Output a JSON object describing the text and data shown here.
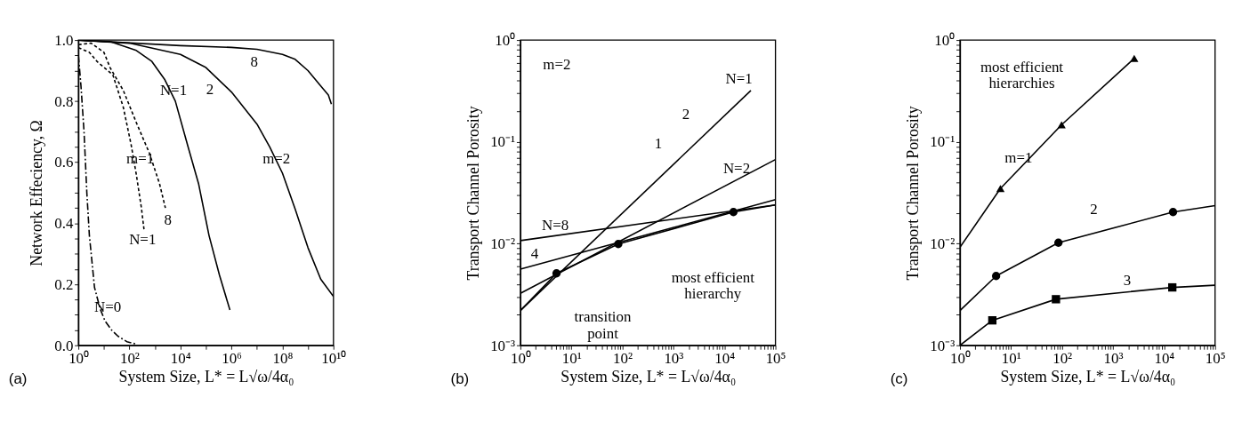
{
  "chart_data": [
    {
      "type": "line",
      "title": "(a)",
      "xlabel": "System Size, L* = L√ω/4α₀",
      "ylabel": "Network Effeciency, Ω",
      "log": "x",
      "xlim": [
        1,
        10000000000
      ],
      "ylim": [
        0,
        1
      ],
      "xticks": [
        {
          "value": 1,
          "label": "10⁰"
        },
        {
          "value": 10,
          "label": null
        },
        {
          "value": 100,
          "label": "10²"
        },
        {
          "value": 1000,
          "label": null
        },
        {
          "value": 10000,
          "label": "10⁴"
        },
        {
          "value": 100000,
          "label": null
        },
        {
          "value": 1000000,
          "label": "10⁶"
        },
        {
          "value": 10000000,
          "label": null
        },
        {
          "value": 100000000,
          "label": "10⁸"
        },
        {
          "value": 1000000000,
          "label": null
        },
        {
          "value": 10000000000,
          "label": "10¹⁰"
        }
      ],
      "yticks": [
        {
          "value": 0,
          "label": "0.0"
        },
        {
          "value": 0.05,
          "label": null
        },
        {
          "value": 0.1,
          "label": null
        },
        {
          "value": 0.15,
          "label": null
        },
        {
          "value": 0.2,
          "label": "0.2"
        },
        {
          "value": 0.25,
          "label": null
        },
        {
          "value": 0.3,
          "label": null
        },
        {
          "value": 0.35,
          "label": null
        },
        {
          "value": 0.4,
          "label": "0.4"
        },
        {
          "value": 0.45,
          "label": null
        },
        {
          "value": 0.5,
          "label": null
        },
        {
          "value": 0.55,
          "label": null
        },
        {
          "value": 0.6,
          "label": "0.6"
        },
        {
          "value": 0.65,
          "label": null
        },
        {
          "value": 0.7,
          "label": null
        },
        {
          "value": 0.75,
          "label": null
        },
        {
          "value": 0.8,
          "label": "0.8"
        },
        {
          "value": 0.85,
          "label": null
        },
        {
          "value": 0.9,
          "label": null
        },
        {
          "value": 0.95,
          "label": null
        },
        {
          "value": 1,
          "label": "1.0"
        }
      ],
      "series": [
        {
          "name": "N=0",
          "color": "#000000",
          "line_style": "dashed",
          "x": [
            1,
            1.26,
            1.66,
            2.14,
            2.69,
            4.27,
            7.08,
            11,
            20,
            35.5,
            79.4,
            186
          ],
          "values": [
            0.95,
            0.85,
            0.7,
            0.5,
            0.36,
            0.19,
            0.12,
            0.08,
            0.05,
            0.03,
            0.012,
            0.004
          ]
        },
        {
          "name": "N=1",
          "color": "#000000",
          "line_style": "dotted",
          "x": [
            1,
            2.69,
            5.37,
            22.4,
            57.5,
            115,
            186,
            295,
            372
          ],
          "values": [
            0.975,
            0.96,
            0.93,
            0.886,
            0.78,
            0.66,
            0.56,
            0.45,
            0.38
          ]
        },
        {
          "name": "8",
          "color": "#000000",
          "line_style": "dotted",
          "x": [
            1,
            3.16,
            10,
            17.4,
            57.5,
            186,
            603,
            1510,
            2570
          ],
          "values": [
            0.985,
            0.99,
            0.96,
            0.91,
            0.835,
            0.73,
            0.63,
            0.53,
            0.45
          ]
        },
        {
          "name": "N=1",
          "color": "#000000",
          "line_style": "solid",
          "x": [
            1,
            17.4,
            186,
            759,
            2450,
            6310,
            20000,
            51300,
            132000,
            339000,
            871000
          ],
          "values": [
            1.0,
            0.995,
            0.966,
            0.93,
            0.87,
            0.8,
            0.65,
            0.53,
            0.36,
            0.23,
            0.116
          ]
        },
        {
          "name": "2",
          "color": "#000000",
          "line_style": "solid",
          "x": [
            1,
            100,
            10000,
            100000,
            1000000,
            10000000,
            31600000,
            100000000,
            316000000,
            1000000000,
            3160000000,
            10000000000
          ],
          "values": [
            1.0,
            0.99,
            0.953,
            0.91,
            0.83,
            0.725,
            0.65,
            0.564,
            0.446,
            0.32,
            0.217,
            0.16
          ]
        },
        {
          "name": "8",
          "color": "#000000",
          "line_style": "solid",
          "x": [
            1,
            10000,
            1000000,
            10000000,
            100000000,
            316000000,
            1000000000,
            3160000000,
            6310000000,
            8300000000
          ],
          "values": [
            1.0,
            0.982,
            0.976,
            0.97,
            0.953,
            0.937,
            0.9,
            0.85,
            0.82,
            0.79
          ]
        }
      ],
      "annotations": [
        "m=2",
        "m=1"
      ]
    },
    {
      "type": "line",
      "title": "(b)",
      "xlabel": "System Size, L* = L√ω/4α₀",
      "ylabel": "Transport Channel Porosity",
      "log": "xy",
      "xlim": [
        1,
        100000
      ],
      "ylim": [
        0.001,
        1
      ],
      "xticks": [
        {
          "value": 1,
          "label": "10⁰"
        },
        {
          "value": 2,
          "label": null
        },
        {
          "value": 3,
          "label": null
        },
        {
          "value": 4,
          "label": null
        },
        {
          "value": 5,
          "label": null
        },
        {
          "value": 6,
          "label": null
        },
        {
          "value": 7,
          "label": null
        },
        {
          "value": 8,
          "label": null
        },
        {
          "value": 9,
          "label": null
        },
        {
          "value": 10,
          "label": "10¹"
        },
        {
          "value": 20,
          "label": null
        },
        {
          "value": 30,
          "label": null
        },
        {
          "value": 40,
          "label": null
        },
        {
          "value": 50,
          "label": null
        },
        {
          "value": 60,
          "label": null
        },
        {
          "value": 70,
          "label": null
        },
        {
          "value": 80,
          "label": null
        },
        {
          "value": 90,
          "label": null
        },
        {
          "value": 100,
          "label": "10²"
        },
        {
          "value": 200,
          "label": null
        },
        {
          "value": 300,
          "label": null
        },
        {
          "value": 400,
          "label": null
        },
        {
          "value": 500,
          "label": null
        },
        {
          "value": 600,
          "label": null
        },
        {
          "value": 700,
          "label": null
        },
        {
          "value": 800,
          "label": null
        },
        {
          "value": 900,
          "label": null
        },
        {
          "value": 1000,
          "label": "10³"
        },
        {
          "value": 2000,
          "label": null
        },
        {
          "value": 3000,
          "label": null
        },
        {
          "value": 4000,
          "label": null
        },
        {
          "value": 5000,
          "label": null
        },
        {
          "value": 6000,
          "label": null
        },
        {
          "value": 7000,
          "label": null
        },
        {
          "value": 8000,
          "label": null
        },
        {
          "value": 9000,
          "label": null
        },
        {
          "value": 10000,
          "label": "10⁴"
        },
        {
          "value": 20000,
          "label": null
        },
        {
          "value": 30000,
          "label": null
        },
        {
          "value": 40000,
          "label": null
        },
        {
          "value": 50000,
          "label": null
        },
        {
          "value": 60000,
          "label": null
        },
        {
          "value": 70000,
          "label": null
        },
        {
          "value": 80000,
          "label": null
        },
        {
          "value": 90000,
          "label": null
        },
        {
          "value": 100000,
          "label": "10⁵"
        }
      ],
      "yticks": [
        {
          "value": 0.001,
          "label": "10⁻³"
        },
        {
          "value": 0.002,
          "label": null
        },
        {
          "value": 0.003,
          "label": null
        },
        {
          "value": 0.004,
          "label": null
        },
        {
          "value": 0.005,
          "label": null
        },
        {
          "value": 0.006,
          "label": null
        },
        {
          "value": 0.007,
          "label": null
        },
        {
          "value": 0.008,
          "label": null
        },
        {
          "value": 0.009,
          "label": null
        },
        {
          "value": 0.01,
          "label": "10⁻²"
        },
        {
          "value": 0.02,
          "label": null
        },
        {
          "value": 0.03,
          "label": null
        },
        {
          "value": 0.04,
          "label": null
        },
        {
          "value": 0.05,
          "label": null
        },
        {
          "value": 0.06,
          "label": null
        },
        {
          "value": 0.07,
          "label": null
        },
        {
          "value": 0.08,
          "label": null
        },
        {
          "value": 0.09,
          "label": null
        },
        {
          "value": 0.1,
          "label": "10⁻¹"
        },
        {
          "value": 0.2,
          "label": null
        },
        {
          "value": 0.3,
          "label": null
        },
        {
          "value": 0.4,
          "label": null
        },
        {
          "value": 0.5,
          "label": null
        },
        {
          "value": 0.6,
          "label": null
        },
        {
          "value": 0.7,
          "label": null
        },
        {
          "value": 0.8,
          "label": null
        },
        {
          "value": 0.9,
          "label": null
        },
        {
          "value": 1,
          "label": "10⁰"
        }
      ],
      "series": [
        {
          "name": "N=1",
          "color": "#000000",
          "line_style": "solid",
          "x": [
            1,
            33000
          ],
          "values": [
            0.0022,
            0.32
          ]
        },
        {
          "name": "N=2",
          "color": "#000000",
          "line_style": "solid",
          "x": [
            1,
            100000
          ],
          "values": [
            0.00325,
            0.067
          ]
        },
        {
          "name": "4",
          "color": "#000000",
          "line_style": "solid",
          "x": [
            1,
            100000
          ],
          "values": [
            0.0056,
            0.027
          ]
        },
        {
          "name": "N=8",
          "color": "#000000",
          "line_style": "solid",
          "x": [
            1,
            100000
          ],
          "values": [
            0.0107,
            0.024
          ]
        },
        {
          "color": "#000000",
          "line_style": "solid",
          "x": [
            1,
            5.1,
            83,
            15000,
            100000
          ],
          "values": [
            0.0022,
            0.0051,
            0.0099,
            0.0204,
            0.024
          ]
        },
        {
          "type": "scatter",
          "color": "#000000",
          "marker": "circle",
          "x": [
            5.1,
            83,
            15000
          ],
          "values": [
            0.0051,
            0.0099,
            0.0204
          ]
        }
      ],
      "annotations": [
        "m=2",
        "2",
        "1",
        "most efficient\nhierarchy",
        "transition\npoint"
      ]
    },
    {
      "type": "line",
      "title": "(c)",
      "xlabel": "System Size, L* = L√ω/4α₀",
      "ylabel": "Transport Channel Porosity",
      "log": "xy",
      "xlim": [
        1,
        100000
      ],
      "ylim": [
        0.001,
        1
      ],
      "xticks": [
        {
          "value": 1,
          "label": "10⁰"
        },
        {
          "value": 2,
          "label": null
        },
        {
          "value": 3,
          "label": null
        },
        {
          "value": 4,
          "label": null
        },
        {
          "value": 5,
          "label": null
        },
        {
          "value": 6,
          "label": null
        },
        {
          "value": 7,
          "label": null
        },
        {
          "value": 8,
          "label": null
        },
        {
          "value": 9,
          "label": null
        },
        {
          "value": 10,
          "label": "10¹"
        },
        {
          "value": 20,
          "label": null
        },
        {
          "value": 30,
          "label": null
        },
        {
          "value": 40,
          "label": null
        },
        {
          "value": 50,
          "label": null
        },
        {
          "value": 60,
          "label": null
        },
        {
          "value": 70,
          "label": null
        },
        {
          "value": 80,
          "label": null
        },
        {
          "value": 90,
          "label": null
        },
        {
          "value": 100,
          "label": "10²"
        },
        {
          "value": 200,
          "label": null
        },
        {
          "value": 300,
          "label": null
        },
        {
          "value": 400,
          "label": null
        },
        {
          "value": 500,
          "label": null
        },
        {
          "value": 600,
          "label": null
        },
        {
          "value": 700,
          "label": null
        },
        {
          "value": 800,
          "label": null
        },
        {
          "value": 900,
          "label": null
        },
        {
          "value": 1000,
          "label": "10³"
        },
        {
          "value": 2000,
          "label": null
        },
        {
          "value": 3000,
          "label": null
        },
        {
          "value": 4000,
          "label": null
        },
        {
          "value": 5000,
          "label": null
        },
        {
          "value": 6000,
          "label": null
        },
        {
          "value": 7000,
          "label": null
        },
        {
          "value": 8000,
          "label": null
        },
        {
          "value": 9000,
          "label": null
        },
        {
          "value": 10000,
          "label": "10⁴"
        },
        {
          "value": 20000,
          "label": null
        },
        {
          "value": 30000,
          "label": null
        },
        {
          "value": 40000,
          "label": null
        },
        {
          "value": 50000,
          "label": null
        },
        {
          "value": 60000,
          "label": null
        },
        {
          "value": 70000,
          "label": null
        },
        {
          "value": 80000,
          "label": null
        },
        {
          "value": 90000,
          "label": null
        },
        {
          "value": 100000,
          "label": "10⁵"
        }
      ],
      "yticks": [
        {
          "value": 0.001,
          "label": "10⁻³"
        },
        {
          "value": 0.002,
          "label": null
        },
        {
          "value": 0.003,
          "label": null
        },
        {
          "value": 0.004,
          "label": null
        },
        {
          "value": 0.005,
          "label": null
        },
        {
          "value": 0.006,
          "label": null
        },
        {
          "value": 0.007,
          "label": null
        },
        {
          "value": 0.008,
          "label": null
        },
        {
          "value": 0.009,
          "label": null
        },
        {
          "value": 0.01,
          "label": "10⁻²"
        },
        {
          "value": 0.02,
          "label": null
        },
        {
          "value": 0.03,
          "label": null
        },
        {
          "value": 0.04,
          "label": null
        },
        {
          "value": 0.05,
          "label": null
        },
        {
          "value": 0.06,
          "label": null
        },
        {
          "value": 0.07,
          "label": null
        },
        {
          "value": 0.08,
          "label": null
        },
        {
          "value": 0.09,
          "label": null
        },
        {
          "value": 0.1,
          "label": "10⁻¹"
        },
        {
          "value": 0.2,
          "label": null
        },
        {
          "value": 0.3,
          "label": null
        },
        {
          "value": 0.4,
          "label": null
        },
        {
          "value": 0.5,
          "label": null
        },
        {
          "value": 0.6,
          "label": null
        },
        {
          "value": 0.7,
          "label": null
        },
        {
          "value": 0.8,
          "label": null
        },
        {
          "value": 0.9,
          "label": null
        },
        {
          "value": 1,
          "label": "10⁰"
        }
      ],
      "series": [
        {
          "name": "m=1",
          "color": "#000000",
          "line_style": "solid",
          "x": [
            1,
            6.2,
            98,
            2600
          ],
          "values": [
            0.0092,
            0.0348,
            0.147,
            0.66
          ]
        },
        {
          "type": "scatter",
          "color": "#000000",
          "marker": "triangle",
          "x": [
            6.2,
            98,
            2600
          ],
          "values": [
            0.0348,
            0.147,
            0.66
          ]
        },
        {
          "name": "2",
          "color": "#000000",
          "line_style": "solid",
          "x": [
            1,
            5.1,
            85,
            15000,
            100000
          ],
          "values": [
            0.0022,
            0.0048,
            0.0102,
            0.0204,
            0.0236
          ]
        },
        {
          "type": "scatter",
          "color": "#000000",
          "marker": "circle",
          "x": [
            5.1,
            85,
            15000
          ],
          "values": [
            0.0048,
            0.0102,
            0.0204
          ]
        },
        {
          "name": "3",
          "color": "#000000",
          "line_style": "solid",
          "x": [
            1,
            4.3,
            76,
            14500,
            100000
          ],
          "values": [
            0.001,
            0.00176,
            0.00284,
            0.00371,
            0.0039
          ]
        },
        {
          "type": "scatter",
          "color": "#000000",
          "marker": "square",
          "x": [
            4.3,
            76,
            14500
          ],
          "values": [
            0.00176,
            0.00284,
            0.00371
          ]
        }
      ],
      "annotations": [
        "most efficient\nhierarchies"
      ]
    }
  ]
}
